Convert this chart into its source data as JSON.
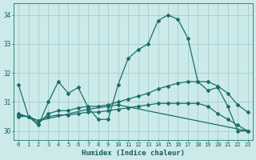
{
  "xlabel": "Humidex (Indice chaleur)",
  "xlim": [
    -0.5,
    23.5
  ],
  "ylim": [
    29.7,
    34.4
  ],
  "xticks": [
    0,
    1,
    2,
    3,
    4,
    5,
    6,
    7,
    8,
    9,
    10,
    11,
    12,
    13,
    14,
    15,
    16,
    17,
    18,
    19,
    20,
    21,
    22,
    23
  ],
  "yticks": [
    30,
    31,
    32,
    33,
    34
  ],
  "bg_color": "#cceaea",
  "grid_color": "#aad0d0",
  "line_color": "#1a6e6a",
  "line1_x": [
    0,
    1,
    2,
    3,
    4,
    5,
    6,
    7,
    8,
    9,
    10,
    11,
    12,
    13,
    14,
    15,
    16,
    17,
    18,
    19,
    20,
    21,
    22,
    23
  ],
  "line1_y": [
    31.6,
    30.5,
    30.2,
    31.0,
    31.7,
    31.3,
    31.5,
    30.8,
    30.4,
    30.4,
    31.6,
    32.5,
    32.8,
    33.0,
    33.8,
    34.0,
    33.85,
    33.2,
    31.7,
    31.4,
    31.5,
    30.85,
    30.0,
    30.0
  ],
  "line2_x": [
    0,
    1,
    2,
    3,
    4,
    5,
    6,
    7,
    8,
    9,
    10,
    11,
    12,
    13,
    14,
    15,
    16,
    17,
    18,
    19,
    20,
    21,
    22,
    23
  ],
  "line2_y": [
    30.55,
    30.5,
    30.25,
    30.6,
    30.7,
    30.7,
    30.8,
    30.85,
    30.85,
    30.9,
    31.0,
    31.1,
    31.2,
    31.3,
    31.45,
    31.55,
    31.65,
    31.7,
    31.7,
    31.7,
    31.55,
    31.3,
    30.9,
    30.65
  ],
  "line3_x": [
    0,
    1,
    2,
    3,
    4,
    5,
    6,
    7,
    8,
    9,
    10,
    11,
    12,
    13,
    14,
    15,
    16,
    17,
    18,
    19,
    20,
    21,
    22,
    23
  ],
  "line3_y": [
    30.5,
    30.5,
    30.35,
    30.5,
    30.55,
    30.55,
    30.6,
    30.65,
    30.65,
    30.7,
    30.75,
    30.8,
    30.85,
    30.9,
    30.95,
    30.95,
    30.95,
    30.95,
    30.95,
    30.85,
    30.6,
    30.4,
    30.2,
    30.0
  ],
  "line4_x": [
    0,
    2,
    7,
    9,
    10,
    23
  ],
  "line4_y": [
    30.6,
    30.35,
    30.75,
    30.85,
    30.9,
    30.0
  ]
}
